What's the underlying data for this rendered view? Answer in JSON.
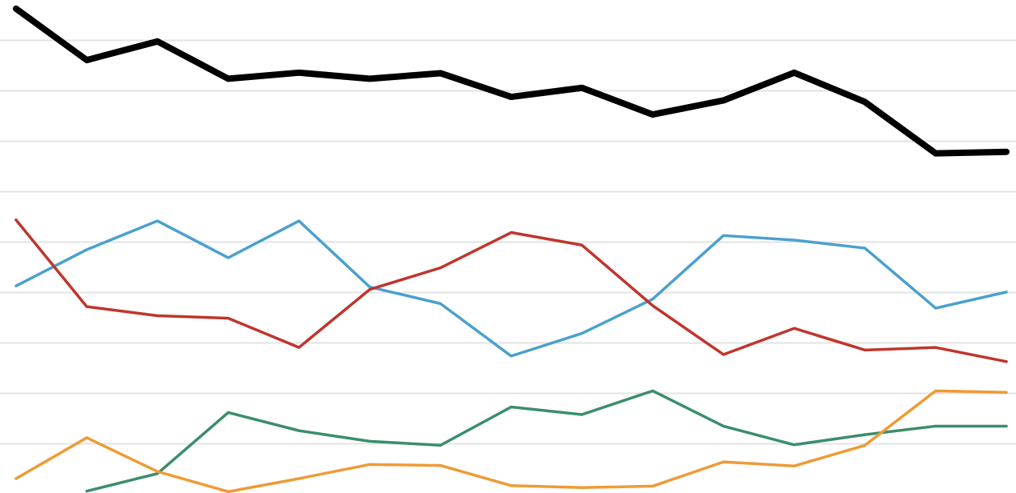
{
  "chart_data": {
    "type": "line",
    "x": [
      1,
      2,
      3,
      4,
      5,
      6,
      7,
      8,
      9,
      10,
      11,
      12,
      13,
      14,
      15
    ],
    "ylim": [
      0,
      10
    ],
    "grid": true,
    "gridlines_y": [
      1,
      2,
      3,
      4,
      5,
      6,
      7,
      8,
      9
    ],
    "series": [
      {
        "color": "#000000",
        "width": 8,
        "values": [
          9.63,
          8.61,
          8.98,
          8.24,
          8.36,
          8.24,
          8.35,
          7.88,
          8.06,
          7.53,
          7.81,
          8.36,
          7.78,
          6.76,
          6.79
        ]
      },
      {
        "color": "#4aa0cf",
        "width": 3.5,
        "values": [
          4.13,
          4.85,
          5.42,
          4.69,
          5.42,
          4.11,
          3.78,
          2.74,
          3.19,
          3.87,
          5.13,
          5.04,
          4.88,
          3.69,
          4.01
        ]
      },
      {
        "color": "#c0352b",
        "width": 3.5,
        "values": [
          5.44,
          3.72,
          3.54,
          3.49,
          2.91,
          4.06,
          4.49,
          5.19,
          4.94,
          3.74,
          2.77,
          3.29,
          2.86,
          2.91,
          2.63
        ]
      },
      {
        "color": "#3a8e6b",
        "width": 3.5,
        "values": [
          null,
          0.06,
          0.41,
          1.62,
          1.26,
          1.05,
          0.97,
          1.73,
          1.58,
          2.05,
          1.35,
          0.98,
          1.18,
          1.35,
          1.35
        ]
      },
      {
        "color": "#ef9a35",
        "width": 3.5,
        "values": [
          0.31,
          1.12,
          0.45,
          0.05,
          0.31,
          0.59,
          0.57,
          0.17,
          0.13,
          0.16,
          0.64,
          0.56,
          0.97,
          2.05,
          2.02
        ]
      }
    ]
  }
}
